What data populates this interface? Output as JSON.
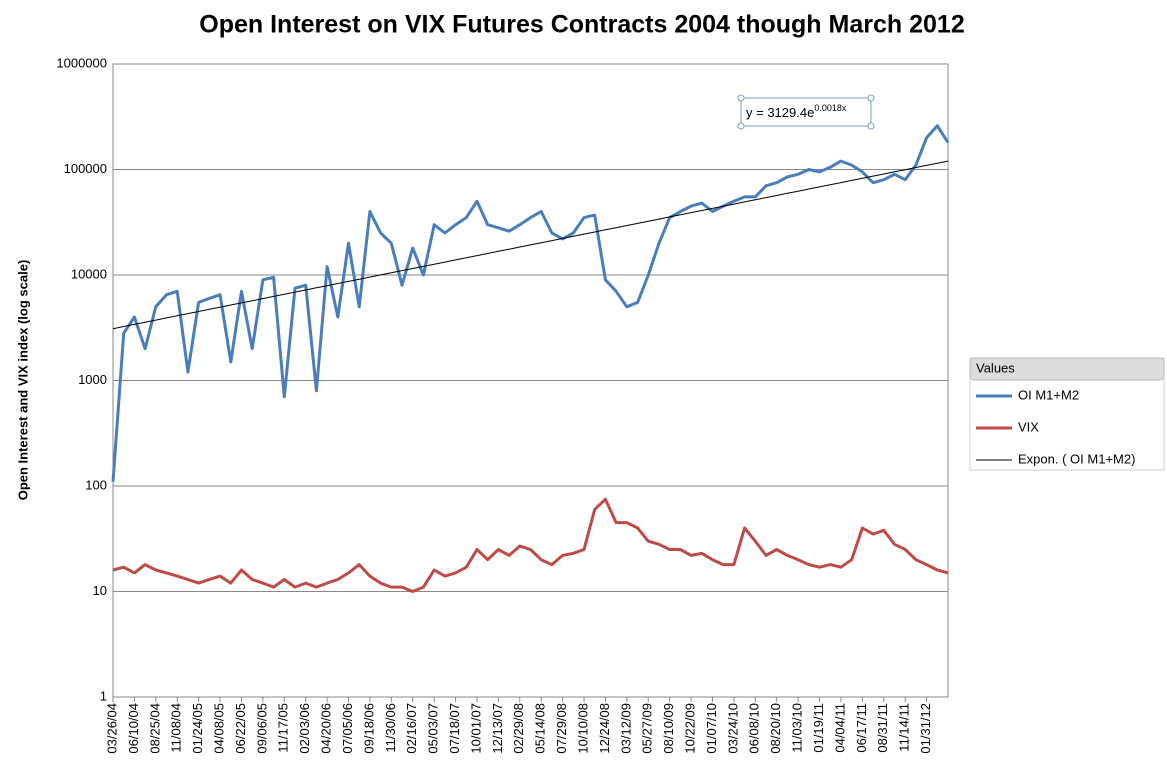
{
  "chart_data": {
    "type": "line",
    "title": "Open Interest on VIX Futures Contracts 2004 though March 2012",
    "y_label": "Open Interest and VIX index (log scale)",
    "log_scale": true,
    "grid": true,
    "legend_title": "Values",
    "legend_position": "right",
    "equation": "y = 3129.4e",
    "equation_exponent": "0.0018x",
    "categories": [
      "03/26/04",
      null,
      "06/10/04",
      null,
      "08/25/04",
      null,
      "11/08/04",
      null,
      "01/24/05",
      null,
      "04/08/05",
      null,
      "06/22/05",
      null,
      "09/06/05",
      null,
      "11/17/05",
      null,
      "02/03/06",
      null,
      "04/20/06",
      null,
      "07/05/06",
      null,
      "09/18/06",
      null,
      "11/30/06",
      null,
      "02/16/07",
      null,
      "05/03/07",
      null,
      "07/18/07",
      null,
      "10/01/07",
      null,
      "12/13/07",
      null,
      "02/29/08",
      null,
      "05/14/08",
      null,
      "07/29/08",
      null,
      "10/10/08",
      null,
      "12/24/08",
      null,
      "03/12/09",
      null,
      "05/27/09",
      null,
      "08/10/09",
      null,
      "10/22/09",
      null,
      "01/07/10",
      null,
      "03/24/10",
      null,
      "06/08/10",
      null,
      "08/20/10",
      null,
      "11/03/10",
      null,
      "01/19/11",
      null,
      "04/04/11",
      null,
      "06/17/11",
      null,
      "08/31/11",
      null,
      "11/14/11",
      null,
      "01/31/12",
      null,
      null
    ],
    "ylim": [
      1,
      1000000
    ],
    "yticks": [
      1,
      10,
      100,
      1000,
      10000,
      100000,
      1000000
    ],
    "series": [
      {
        "name": "OI M1+M2",
        "color": "#4a7ebb",
        "width": 3,
        "values": [
          110,
          2800,
          4000,
          2000,
          5000,
          6500,
          7000,
          1200,
          5500,
          6000,
          6500,
          1500,
          7000,
          2000,
          9000,
          9500,
          700,
          7500,
          8000,
          800,
          12000,
          4000,
          20000,
          5000,
          40000,
          25000,
          20000,
          8000,
          18000,
          10000,
          30000,
          25000,
          30000,
          35000,
          50000,
          30000,
          28000,
          26000,
          30000,
          35000,
          40000,
          25000,
          22000,
          25000,
          35000,
          37000,
          9000,
          7000,
          5000,
          5500,
          10000,
          20000,
          35000,
          40000,
          45000,
          48000,
          40000,
          45000,
          50000,
          55000,
          55000,
          70000,
          75000,
          85000,
          90000,
          100000,
          95000,
          105000,
          120000,
          110000,
          95000,
          75000,
          80000,
          90000,
          80000,
          110000,
          200000,
          260000,
          180000
        ]
      },
      {
        "name": "VIX",
        "color": "#be4b48",
        "width": 3,
        "values": [
          16,
          17,
          15,
          18,
          16,
          15,
          14,
          13,
          12,
          13,
          14,
          12,
          16,
          13,
          12,
          11,
          13,
          11,
          12,
          11,
          12,
          13,
          15,
          18,
          14,
          12,
          11,
          11,
          10,
          11,
          16,
          14,
          15,
          17,
          25,
          20,
          25,
          22,
          27,
          25,
          20,
          18,
          22,
          23,
          25,
          60,
          75,
          45,
          45,
          40,
          30,
          28,
          25,
          25,
          22,
          23,
          20,
          18,
          18,
          40,
          30,
          22,
          25,
          22,
          20,
          18,
          17,
          18,
          17,
          20,
          40,
          35,
          38,
          28,
          25,
          20,
          18,
          16,
          15
        ]
      },
      {
        "name": "Expon. ( OI M1+M2)",
        "color": "#000000",
        "width": 1,
        "values": [
          3100,
          3249,
          3405,
          3568,
          3740,
          3919,
          4107,
          4305,
          4511,
          4728,
          4955,
          5193,
          5442,
          5703,
          5977,
          6264,
          6565,
          6880,
          7210,
          7557,
          7919,
          8299,
          8698,
          9115,
          9553,
          10012,
          10492,
          10996,
          11524,
          12077,
          12656,
          13264,
          13901,
          14568,
          15267,
          16000,
          16768,
          17573,
          18416,
          19300,
          20227,
          21198,
          22215,
          23281,
          24399,
          25570,
          26798,
          28084,
          29432,
          30845,
          32326,
          33877,
          35504,
          37208,
          38994,
          40866,
          42827,
          44883,
          47037,
          49295,
          51662,
          54141,
          56740,
          59464,
          62318,
          65309,
          68444,
          71730,
          75173,
          78781,
          82562,
          86525,
          90679,
          95031,
          99593,
          104373,
          109383,
          114634,
          120136
        ]
      }
    ]
  }
}
